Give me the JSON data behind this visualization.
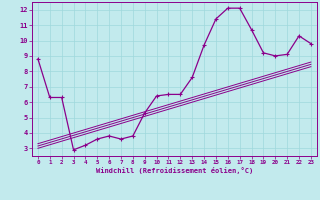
{
  "xlabel": "Windchill (Refroidissement éolien,°C)",
  "bg_color": "#c2eaed",
  "line_color": "#8b008b",
  "grid_color": "#9fd8dc",
  "xlim": [
    -0.5,
    23.5
  ],
  "ylim": [
    2.5,
    12.5
  ],
  "yticks": [
    3,
    4,
    5,
    6,
    7,
    8,
    9,
    10,
    11,
    12
  ],
  "xticks": [
    0,
    1,
    2,
    3,
    4,
    5,
    6,
    7,
    8,
    9,
    10,
    11,
    12,
    13,
    14,
    15,
    16,
    17,
    18,
    19,
    20,
    21,
    22,
    23
  ],
  "line1_x": [
    0,
    1,
    2,
    3,
    4,
    5,
    6,
    7,
    8,
    9,
    10,
    11,
    12,
    13,
    14,
    15,
    16,
    17,
    18,
    19,
    20,
    21,
    22,
    23
  ],
  "line1_y": [
    8.8,
    6.3,
    6.3,
    2.9,
    3.2,
    3.6,
    3.8,
    3.6,
    3.8,
    5.3,
    6.4,
    6.5,
    6.5,
    7.6,
    9.7,
    11.4,
    12.1,
    12.1,
    10.7,
    9.2,
    9.0,
    9.1,
    10.3,
    9.8
  ],
  "line2_x": [
    0,
    23
  ],
  "line2_y": [
    3.0,
    8.3
  ],
  "line3_x": [
    0,
    23
  ],
  "line3_y": [
    3.15,
    8.45
  ],
  "line4_x": [
    0,
    23
  ],
  "line4_y": [
    3.3,
    8.6
  ]
}
